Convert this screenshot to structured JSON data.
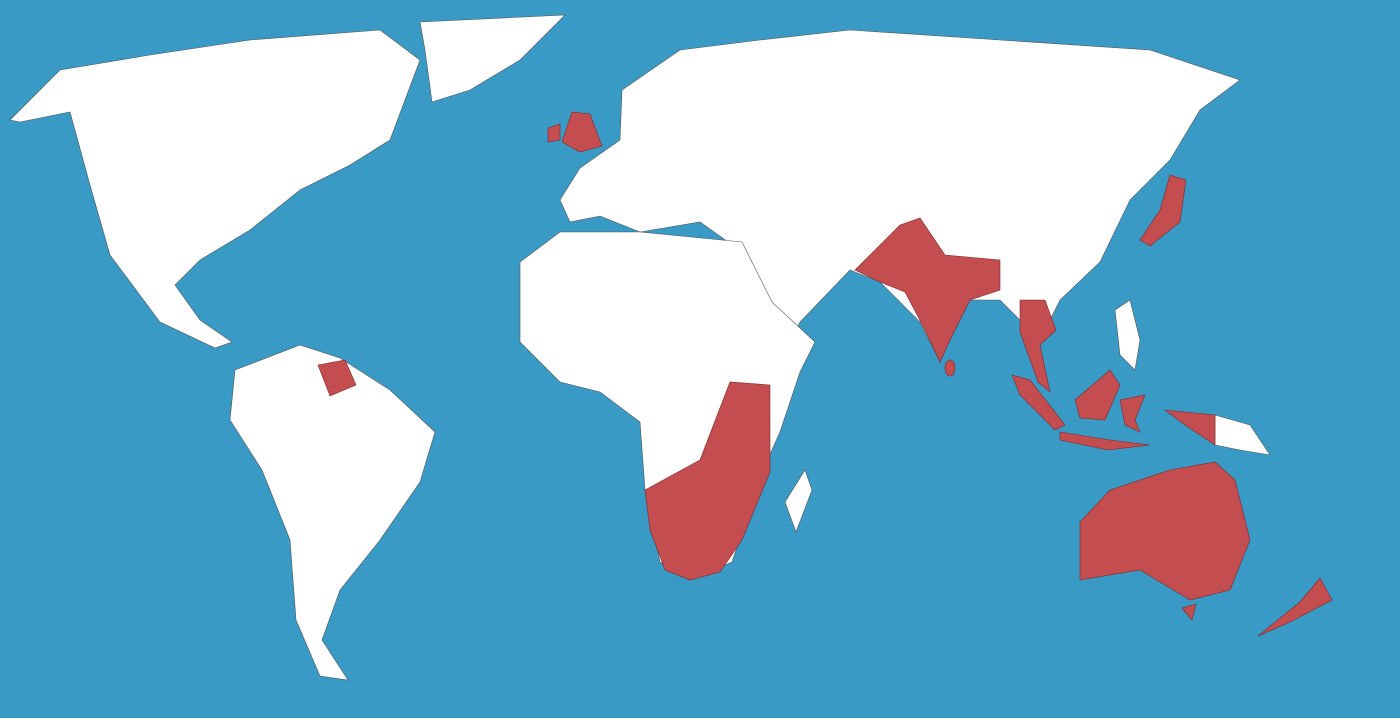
{
  "map": {
    "colors": {
      "ocean": "#3a9ac6",
      "land": "#ffffff",
      "highlighted": "#c44d4f",
      "border": "#555555"
    }
  }
}
